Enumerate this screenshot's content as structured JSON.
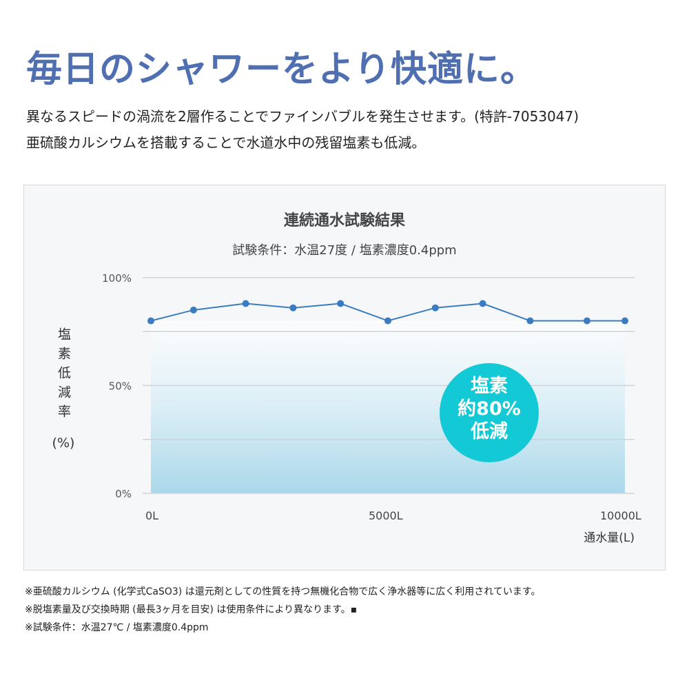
{
  "headline": "毎日のシャワーをより快適に。",
  "lead": [
    "異なるスピードの渦流を2層作ることでファインバブルを発生させます。(特許-7053047)",
    "亜硫酸カルシウムを搭載することで水道水中の残留塩素も低減。"
  ],
  "chart_data": {
    "type": "line",
    "title": "連続通水試験結果",
    "subtitle": "試験条件：水温27度 / 塩素濃度0.4ppm",
    "ylabel": "塩素低減率",
    "ylabel_unit": "(%)",
    "xlabel": "通水量(L)",
    "x": [
      0,
      900,
      2000,
      3000,
      4000,
      5000,
      6000,
      7000,
      8000,
      9200,
      10000
    ],
    "values": [
      80,
      85,
      88,
      86,
      88,
      80,
      86,
      88,
      80,
      80,
      80
    ],
    "xlim": [
      0,
      10000
    ],
    "ylim": [
      0,
      100
    ],
    "x_ticks": [
      {
        "value": 0,
        "label": "0L"
      },
      {
        "value": 5000,
        "label": "5000L"
      },
      {
        "value": 10000,
        "label": "10000L"
      }
    ],
    "y_ticks": [
      {
        "value": 100,
        "label": "100%"
      },
      {
        "value": 50,
        "label": "50%"
      },
      {
        "value": 0,
        "label": "0%"
      }
    ],
    "gridlines": [
      100,
      75,
      50,
      25,
      0
    ],
    "grid": true,
    "line_color": "#3a7cbf",
    "fill_color": "#a9d8ea",
    "badge": {
      "lines": [
        "塩素",
        "約80%",
        "低減"
      ],
      "color": "#14c9d6"
    }
  },
  "notes": [
    "※亜硫酸カルシウム (化学式CaSO3) は還元剤としての性質を持つ無機化合物で広く浄水器等に広く利用されています。",
    "※脱塩素量及び交換時期 (最長3ヶ月を目安) は使用条件により異なります。▪",
    "※試験条件：水温27℃ / 塩素濃度0.4ppm"
  ]
}
